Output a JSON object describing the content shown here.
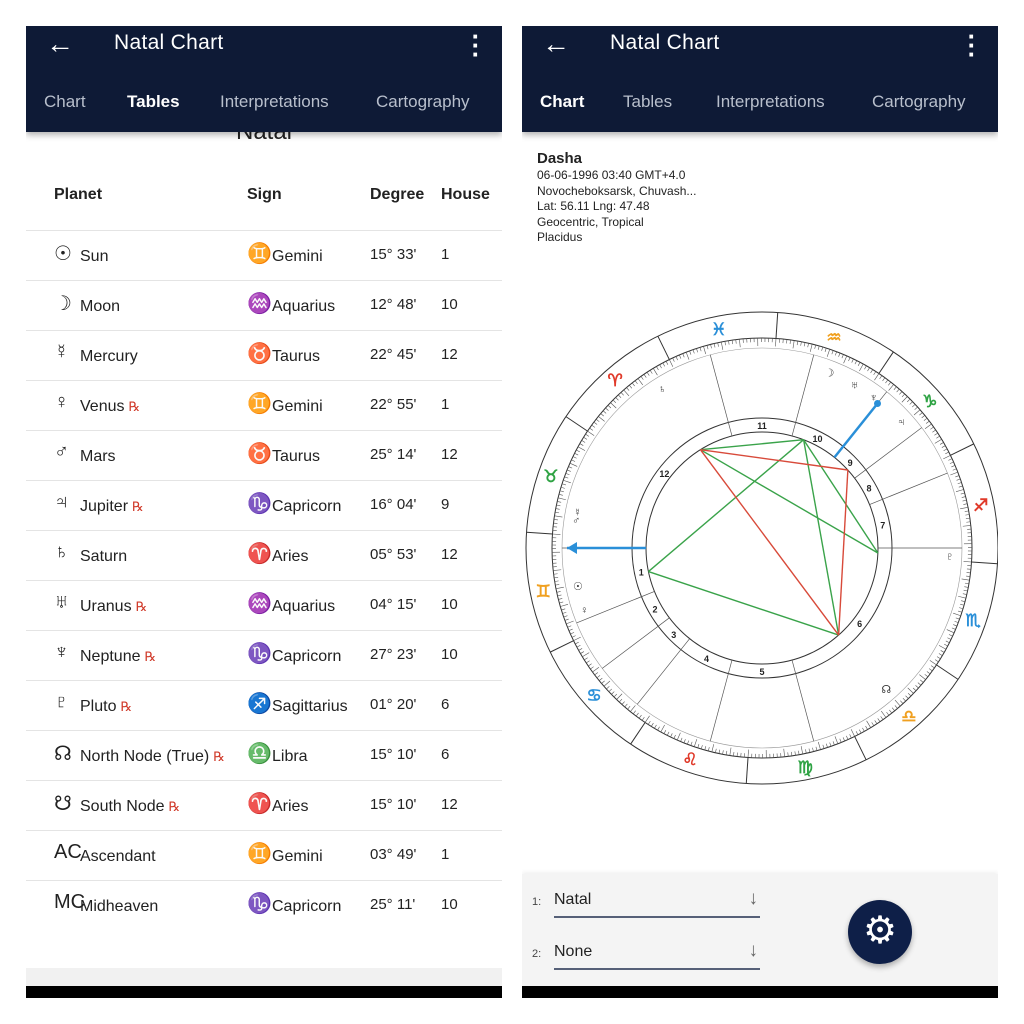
{
  "app": {
    "title": "Natal Chart",
    "tabs": [
      "Chart",
      "Tables",
      "Interpretations",
      "Cartography"
    ]
  },
  "left": {
    "active_tab": "Tables",
    "subtitle": "Natal",
    "columns": [
      "Planet",
      "Sign",
      "Degree",
      "House"
    ],
    "rows": [
      {
        "glyph": "☉",
        "planet": "Sun",
        "rx": "",
        "sign_glyph": "♊",
        "sign": "Gemini",
        "degree": "15° 33'",
        "house": "1"
      },
      {
        "glyph": "☽",
        "planet": "Moon",
        "rx": "",
        "sign_glyph": "♒",
        "sign": "Aquarius",
        "degree": "12° 48'",
        "house": "10"
      },
      {
        "glyph": "☿",
        "planet": "Mercury",
        "rx": "",
        "sign_glyph": "♉",
        "sign": "Taurus",
        "degree": "22° 45'",
        "house": "12"
      },
      {
        "glyph": "♀",
        "planet": "Venus",
        "rx": "℞",
        "sign_glyph": "♊",
        "sign": "Gemini",
        "degree": "22° 55'",
        "house": "1"
      },
      {
        "glyph": "♂",
        "planet": "Mars",
        "rx": "",
        "sign_glyph": "♉",
        "sign": "Taurus",
        "degree": "25° 14'",
        "house": "12"
      },
      {
        "glyph": "♃",
        "planet": "Jupiter",
        "rx": "℞",
        "sign_glyph": "♑",
        "sign": "Capricorn",
        "degree": "16° 04'",
        "house": "9"
      },
      {
        "glyph": "♄",
        "planet": "Saturn",
        "rx": "",
        "sign_glyph": "♈",
        "sign": "Aries",
        "degree": "05° 53'",
        "house": "12"
      },
      {
        "glyph": "♅",
        "planet": "Uranus",
        "rx": "℞",
        "sign_glyph": "♒",
        "sign": "Aquarius",
        "degree": "04° 15'",
        "house": "10"
      },
      {
        "glyph": "♆",
        "planet": "Neptune",
        "rx": "℞",
        "sign_glyph": "♑",
        "sign": "Capricorn",
        "degree": "27° 23'",
        "house": "10"
      },
      {
        "glyph": "♇",
        "planet": "Pluto",
        "rx": "℞",
        "sign_glyph": "♐",
        "sign": "Sagittarius",
        "degree": "01° 20'",
        "house": "6"
      },
      {
        "glyph": "☊",
        "planet": "North Node (True)",
        "rx": "℞",
        "sign_glyph": "♎",
        "sign": "Libra",
        "degree": "15° 10'",
        "house": "6"
      },
      {
        "glyph": "☋",
        "planet": "South Node",
        "rx": "℞",
        "sign_glyph": "♈",
        "sign": "Aries",
        "degree": "15° 10'",
        "house": "12"
      },
      {
        "glyph": "AC",
        "planet": "Ascendant",
        "rx": "",
        "sign_glyph": "♊",
        "sign": "Gemini",
        "degree": "03° 49'",
        "house": "1"
      },
      {
        "glyph": "MC",
        "planet": "Midheaven",
        "rx": "",
        "sign_glyph": "♑",
        "sign": "Capricorn",
        "degree": "25° 11'",
        "house": "10"
      }
    ]
  },
  "right": {
    "active_tab": "Chart",
    "info": {
      "name": "Dasha",
      "datetime": "06-06-1996 03:40 GMT+4.0",
      "place": "Novocheboksarsk, Chuvash...",
      "coords": "Lat: 56.11 Lng: 47.48",
      "system": "Geocentric, Tropical",
      "houses": "Placidus"
    },
    "selectors": [
      {
        "label": "1:",
        "value": "Natal"
      },
      {
        "label": "2:",
        "value": "None"
      }
    ],
    "settings_icon": "gear-icon"
  },
  "wheel": {
    "signs": [
      {
        "g": "♈",
        "c": "#e03a2a"
      },
      {
        "g": "♉",
        "c": "#2fa344"
      },
      {
        "g": "♊",
        "c": "#f0a020"
      },
      {
        "g": "♋",
        "c": "#2a8fd8"
      },
      {
        "g": "♌",
        "c": "#e03a2a"
      },
      {
        "g": "♍",
        "c": "#2fa344"
      },
      {
        "g": "♎",
        "c": "#f0a020"
      },
      {
        "g": "♏",
        "c": "#2a8fd8"
      },
      {
        "g": "♐",
        "c": "#e03a2a"
      },
      {
        "g": "♑",
        "c": "#2fa344"
      },
      {
        "g": "♒",
        "c": "#f0a020"
      },
      {
        "g": "♓",
        "c": "#2a8fd8"
      }
    ],
    "ascendant": 63.82,
    "midheaven": 295.18,
    "house_numbers": [
      "1",
      "2",
      "3",
      "4",
      "5",
      "6",
      "7",
      "8",
      "9",
      "10",
      "11",
      "12"
    ],
    "planets": [
      {
        "g": "☉",
        "lon": 75.55
      },
      {
        "g": "☽",
        "lon": 312.8
      },
      {
        "g": "☿",
        "lon": 52.75
      },
      {
        "g": "♀",
        "lon": 82.92
      },
      {
        "g": "♂",
        "lon": 55.23
      },
      {
        "g": "♃",
        "lon": 286.07
      },
      {
        "g": "♄",
        "lon": 5.88
      },
      {
        "g": "♅",
        "lon": 304.25
      },
      {
        "g": "♆",
        "lon": 297.38
      },
      {
        "g": "♇",
        "lon": 241.33
      },
      {
        "g": "☊",
        "lon": 195.17
      }
    ],
    "aspects": [
      {
        "a": "☉",
        "b": "☽",
        "color": "#3aa34a"
      },
      {
        "a": "☉",
        "b": "☊",
        "color": "#3aa34a"
      },
      {
        "a": "♄",
        "b": "☽",
        "color": "#3aa34a"
      },
      {
        "a": "♄",
        "b": "♇",
        "color": "#3aa34a"
      },
      {
        "a": "☽",
        "b": "♇",
        "color": "#3aa34a"
      },
      {
        "a": "☽",
        "b": "☊",
        "color": "#3aa34a"
      },
      {
        "a": "♄",
        "b": "☊",
        "color": "#d84a3a"
      },
      {
        "a": "♄",
        "b": "♃",
        "color": "#d84a3a"
      },
      {
        "a": "♃",
        "b": "☊",
        "color": "#d84a3a"
      }
    ],
    "arrow_color": "#2a8fd8"
  }
}
